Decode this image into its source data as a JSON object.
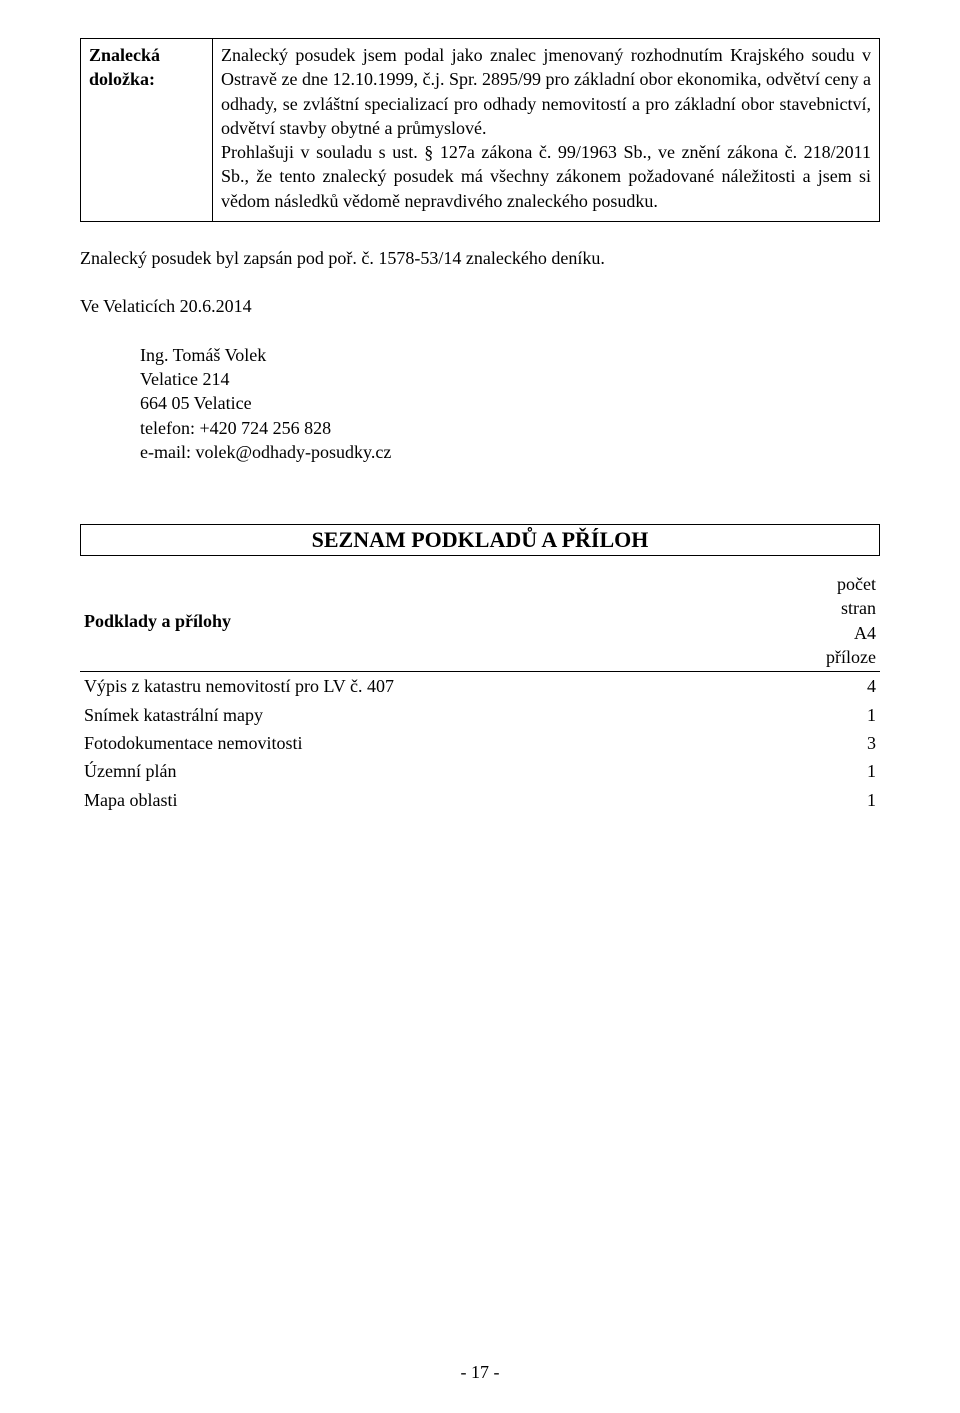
{
  "clause": {
    "label_line1": "Znalecká",
    "label_line2": "doložka:",
    "body": "Znalecký posudek jsem podal jako znalec jmenovaný rozhodnutím Krajského soudu v Ostravě ze dne 12.10.1999, č.j. Spr. 2895/99 pro základní obor ekonomika, odvětví ceny a odhady, se zvláštní specializací pro odhady nemovitostí a pro základní obor stavebnictví, odvětví stavby obytné a průmyslové.",
    "body2": "Prohlašuji v souladu s ust. § 127a zákona č. 99/1963 Sb., ve znění zákona č. 218/2011 Sb., že tento znalecký posudek má  všechny zákonem požadované náležitosti a jsem si vědom  následků  vědomě nepravdivého znaleckého posudku."
  },
  "registration_line": "Znalecký posudek byl zapsán pod poř. č. 1578-53/14 znaleckého deníku.",
  "place_date": "Ve Velaticích 20.6.2014",
  "signature": {
    "name": "Ing. Tomáš Volek",
    "addr1": "Velatice 214",
    "addr2": "664 05 Velatice",
    "phone": "telefon: +420 724 256 828",
    "email": "e-mail: volek@odhady-posudky.cz"
  },
  "attachments": {
    "section_title": "SEZNAM PODKLADŮ A PŘÍLOH",
    "header_left": "Podklady a přílohy",
    "header_right": "počet stran A4 příloze",
    "rows": [
      {
        "label": "Výpis z katastru nemovitostí pro LV č. 407",
        "count": "4"
      },
      {
        "label": "Snímek katastrální mapy",
        "count": "1"
      },
      {
        "label": "Fotodokumentace nemovitosti",
        "count": "3"
      },
      {
        "label": "Územní plán",
        "count": "1"
      },
      {
        "label": "Mapa oblasti",
        "count": "1"
      }
    ]
  },
  "page_number": "- 17 -"
}
